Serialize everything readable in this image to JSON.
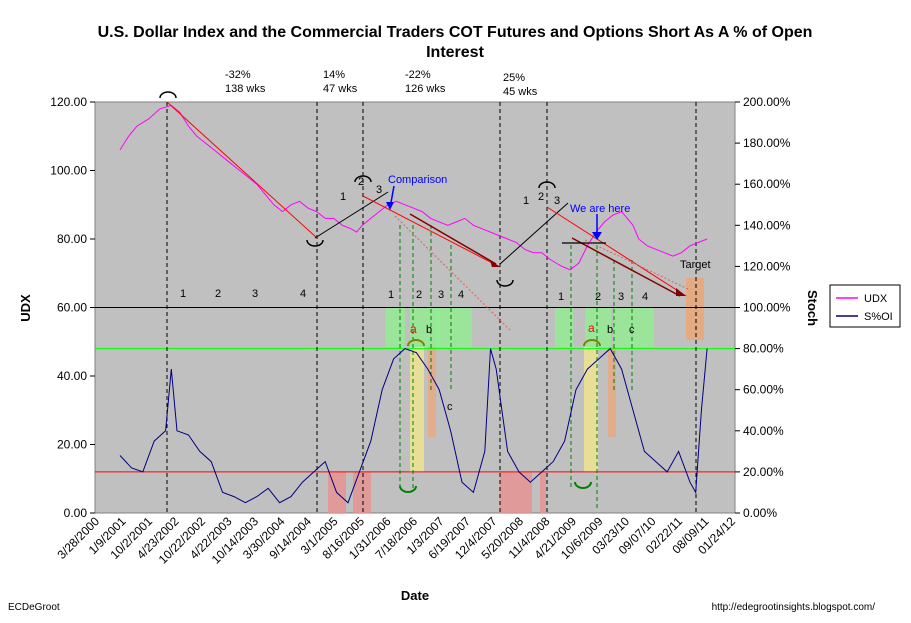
{
  "chart_data": {
    "type": "line",
    "title": "U.S. Dollar Index and the Commercial Traders COT Futures and Options Short As A % of Open Interest",
    "title_line1": "U.S. Dollar Index and the Commercial Traders COT Futures and Options Short As A % of Open",
    "title_line2": "Interest",
    "xlabel": "Date",
    "ylabel_left": "UDX",
    "ylabel_right": "Stoch",
    "ylim_left": [
      0,
      120
    ],
    "ylim_right": [
      0,
      200
    ],
    "yticks_left": [
      "0.00",
      "20.00",
      "40.00",
      "60.00",
      "80.00",
      "100.00",
      "120.00"
    ],
    "yticks_right": [
      "0.00%",
      "20.00%",
      "40.00%",
      "60.00%",
      "80.00%",
      "100.00%",
      "120.00%",
      "140.00%",
      "160.00%",
      "180.00%",
      "200.00%"
    ],
    "x_ticks": [
      "3/28/2000",
      "1/9/2001",
      "10/2/2001",
      "4/23/2002",
      "10/22/2002",
      "4/22/2003",
      "10/14/2003",
      "3/30/2004",
      "9/14/2004",
      "3/1/2005",
      "8/16/2005",
      "1/31/2006",
      "7/18/2006",
      "1/3/2007",
      "6/19/2007",
      "12/4/2007",
      "5/20/2008",
      "11/4/2008",
      "4/21/2009",
      "10/6/2009",
      "03/23/10",
      "09/07/10",
      "02/22/11",
      "08/09/11",
      "01/24/12"
    ],
    "legend": {
      "position": "right",
      "entries": [
        "UDX",
        "S%OI"
      ]
    },
    "series": [
      {
        "name": "UDX",
        "color": "#ff00ff",
        "axis": "left",
        "points": [
          [
            0,
            106
          ],
          [
            0.3,
            110
          ],
          [
            0.6,
            113
          ],
          [
            1.0,
            115
          ],
          [
            1.4,
            118
          ],
          [
            1.8,
            119
          ],
          [
            2.1,
            117
          ],
          [
            2.4,
            113
          ],
          [
            2.7,
            110
          ],
          [
            3.0,
            108
          ],
          [
            3.3,
            106
          ],
          [
            3.6,
            104
          ],
          [
            3.9,
            102
          ],
          [
            4.2,
            100
          ],
          [
            4.5,
            98
          ],
          [
            4.8,
            96
          ],
          [
            5.1,
            93
          ],
          [
            5.4,
            90
          ],
          [
            5.7,
            88
          ],
          [
            6.0,
            90
          ],
          [
            6.3,
            91
          ],
          [
            6.6,
            89
          ],
          [
            6.9,
            88
          ],
          [
            7.2,
            86
          ],
          [
            7.5,
            86
          ],
          [
            7.8,
            84
          ],
          [
            8.1,
            83
          ],
          [
            8.3,
            82
          ],
          [
            8.5,
            84
          ],
          [
            8.8,
            86
          ],
          [
            9.1,
            88
          ],
          [
            9.4,
            90
          ],
          [
            9.7,
            91
          ],
          [
            10.0,
            90
          ],
          [
            10.3,
            89
          ],
          [
            10.6,
            88
          ],
          [
            10.9,
            86
          ],
          [
            11.2,
            85
          ],
          [
            11.5,
            84
          ],
          [
            11.8,
            85
          ],
          [
            12.1,
            86
          ],
          [
            12.4,
            84
          ],
          [
            12.7,
            83
          ],
          [
            13.0,
            82
          ],
          [
            13.3,
            81
          ],
          [
            13.6,
            80
          ],
          [
            13.9,
            79
          ],
          [
            14.2,
            77
          ],
          [
            14.5,
            76
          ],
          [
            14.8,
            76
          ],
          [
            15.1,
            74
          ],
          [
            15.3,
            73
          ],
          [
            15.5,
            72
          ],
          [
            15.8,
            71
          ],
          [
            16.1,
            73
          ],
          [
            16.4,
            78
          ],
          [
            16.7,
            82
          ],
          [
            17.0,
            85
          ],
          [
            17.3,
            87
          ],
          [
            17.6,
            88
          ],
          [
            17.8,
            86
          ],
          [
            18.0,
            84
          ],
          [
            18.2,
            80
          ],
          [
            18.5,
            78
          ],
          [
            18.8,
            77
          ],
          [
            19.1,
            76
          ],
          [
            19.4,
            75
          ],
          [
            19.7,
            76
          ],
          [
            20.0,
            78
          ],
          [
            20.3,
            79
          ],
          [
            20.6,
            80
          ]
        ]
      },
      {
        "name": "S%OI",
        "color": "#000080",
        "axis": "right",
        "points": [
          [
            0,
            28
          ],
          [
            0.4,
            22
          ],
          [
            0.8,
            20
          ],
          [
            1.2,
            35
          ],
          [
            1.6,
            40
          ],
          [
            1.8,
            70
          ],
          [
            2.0,
            40
          ],
          [
            2.4,
            38
          ],
          [
            2.8,
            30
          ],
          [
            3.2,
            25
          ],
          [
            3.6,
            10
          ],
          [
            4.0,
            8
          ],
          [
            4.4,
            5
          ],
          [
            4.8,
            8
          ],
          [
            5.2,
            12
          ],
          [
            5.6,
            5
          ],
          [
            6.0,
            8
          ],
          [
            6.4,
            15
          ],
          [
            6.8,
            20
          ],
          [
            7.2,
            25
          ],
          [
            7.6,
            10
          ],
          [
            8.0,
            5
          ],
          [
            8.4,
            20
          ],
          [
            8.8,
            35
          ],
          [
            9.2,
            60
          ],
          [
            9.6,
            75
          ],
          [
            10.0,
            80
          ],
          [
            10.4,
            78
          ],
          [
            10.8,
            70
          ],
          [
            11.2,
            60
          ],
          [
            11.6,
            40
          ],
          [
            12.0,
            15
          ],
          [
            12.4,
            10
          ],
          [
            12.8,
            30
          ],
          [
            13.0,
            80
          ],
          [
            13.2,
            70
          ],
          [
            13.6,
            30
          ],
          [
            14.0,
            20
          ],
          [
            14.4,
            15
          ],
          [
            14.8,
            20
          ],
          [
            15.2,
            25
          ],
          [
            15.6,
            35
          ],
          [
            16.0,
            60
          ],
          [
            16.4,
            70
          ],
          [
            16.8,
            75
          ],
          [
            17.2,
            80
          ],
          [
            17.6,
            70
          ],
          [
            18.0,
            50
          ],
          [
            18.4,
            30
          ],
          [
            18.8,
            25
          ],
          [
            19.2,
            20
          ],
          [
            19.6,
            30
          ],
          [
            20.0,
            15
          ],
          [
            20.2,
            10
          ],
          [
            20.4,
            50
          ],
          [
            20.6,
            80
          ]
        ]
      }
    ],
    "reference_lines": [
      {
        "axis": "right",
        "value": 100,
        "color": "#000000"
      },
      {
        "axis": "right",
        "value": 80,
        "color": "#00ff00"
      },
      {
        "axis": "right",
        "value": 20,
        "color": "#ff0000"
      }
    ],
    "annotations": [
      {
        "text": "-32%",
        "text2": "138 wks"
      },
      {
        "text": "14%",
        "text2": "47 wks"
      },
      {
        "text": "-22%",
        "text2": "126 wks"
      },
      {
        "text": "25%",
        "text2": "45 wks"
      },
      {
        "text": "Comparison"
      },
      {
        "text": "We are here"
      },
      {
        "text": "Target"
      },
      {
        "text": "1"
      },
      {
        "text": "2"
      },
      {
        "text": "3"
      },
      {
        "text": "4"
      },
      {
        "text": "a"
      },
      {
        "text": "b"
      },
      {
        "text": "c"
      }
    ]
  },
  "footer": {
    "left": "ECDeGroot",
    "right": "http://edegrootinsights.blogspot.com/"
  }
}
